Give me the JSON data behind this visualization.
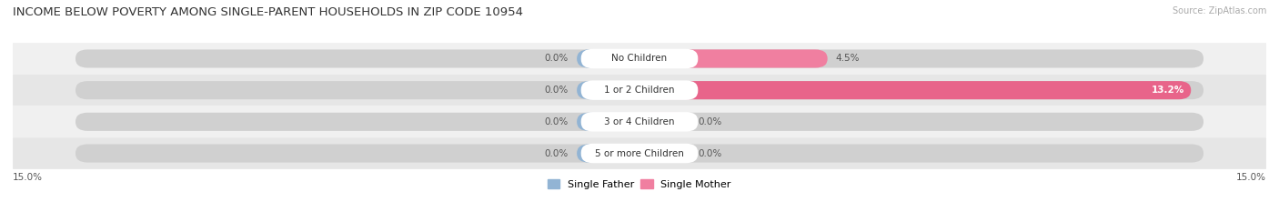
{
  "title": "INCOME BELOW POVERTY AMONG SINGLE-PARENT HOUSEHOLDS IN ZIP CODE 10954",
  "source": "Source: ZipAtlas.com",
  "categories": [
    "No Children",
    "1 or 2 Children",
    "3 or 4 Children",
    "5 or more Children"
  ],
  "single_father": [
    0.0,
    0.0,
    0.0,
    0.0
  ],
  "single_mother": [
    4.5,
    13.2,
    0.0,
    0.0
  ],
  "father_color": "#92b4d4",
  "mother_color": "#f07fa0",
  "mother_color_bright": "#e8648a",
  "x_axis_min": -15.0,
  "x_axis_max": 15.0,
  "father_stub": 1.5,
  "mother_stub": 1.2,
  "legend_father": "Single Father",
  "legend_mother": "Single Mother",
  "left_label": "15.0%",
  "right_label": "15.0%",
  "row_bg_even": "#f0f0f0",
  "row_bg_odd": "#e6e6e6",
  "bar_bg_color": "#d0d0d0",
  "title_fontsize": 9.5,
  "val_fontsize": 7.5,
  "cat_fontsize": 7.5
}
